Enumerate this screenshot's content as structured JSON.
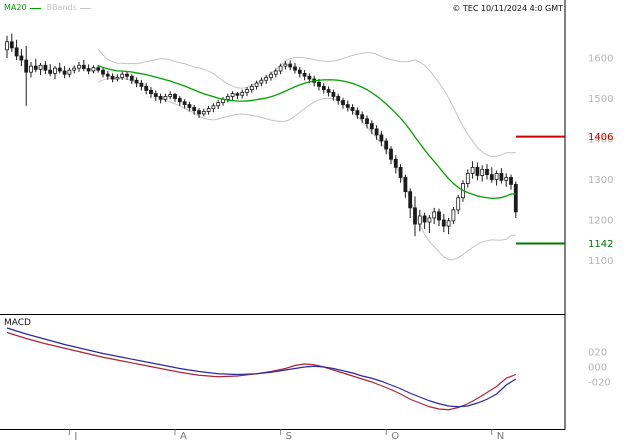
{
  "header": {
    "legend": [
      {
        "label": "MA20",
        "color": "#00a000",
        "icon": "line-swatch"
      },
      {
        "label": "BBands",
        "color": "#c4c4c4",
        "icon": "line-swatch"
      }
    ],
    "copyright": "© TEC 10/11/2024 4:0 GMT"
  },
  "colors": {
    "frame": "#000000",
    "axis_text": "#b4b4b4",
    "month_text": "#7a7a7a",
    "tick_mark": "#8a8a8a",
    "candle": "#1c1c1c",
    "candle_up_fill": "#ffffff",
    "ma20": "#00a000",
    "bbands": "#c4c4c4",
    "resistance": "#cc0000",
    "support": "#007700",
    "macd_line": "#b02535",
    "macd_signal": "#2a2aa0"
  },
  "chart_data": [
    {
      "type": "candlestick",
      "title": "",
      "ylim": [
        1060,
        1665
      ],
      "yticks": [
        1600,
        1500,
        1400,
        1300,
        1200,
        1100
      ],
      "grid": false,
      "legend_position": "top-left",
      "x_axis": {
        "tick_labels": [
          "J",
          "A",
          "S",
          "O",
          "N"
        ],
        "tick_indices": [
          13,
          35,
          57,
          79,
          101
        ]
      },
      "overlays": [
        {
          "name": "MA20",
          "kind": "sma",
          "period": 20
        },
        {
          "name": "BBands",
          "kind": "bollinger",
          "period": 20,
          "stddev": 2
        }
      ],
      "levels": [
        {
          "label": "1406",
          "value": 1406,
          "color": "#cc0000",
          "role": "resistance"
        },
        {
          "label": "1142",
          "value": 1142,
          "color": "#007700",
          "role": "support"
        }
      ],
      "candles_ohlc": [
        [
          1620,
          1655,
          1600,
          1640
        ],
        [
          1640,
          1660,
          1615,
          1625
        ],
        [
          1625,
          1645,
          1595,
          1605
        ],
        [
          1605,
          1622,
          1580,
          1595
        ],
        [
          1595,
          1630,
          1482,
          1565
        ],
        [
          1565,
          1590,
          1552,
          1580
        ],
        [
          1580,
          1598,
          1565,
          1572
        ],
        [
          1572,
          1588,
          1558,
          1582
        ],
        [
          1582,
          1592,
          1560,
          1570
        ],
        [
          1570,
          1585,
          1555,
          1562
        ],
        [
          1562,
          1580,
          1548,
          1575
        ],
        [
          1575,
          1588,
          1562,
          1568
        ],
        [
          1568,
          1580,
          1550,
          1560
        ],
        [
          1560,
          1576,
          1552,
          1570
        ],
        [
          1570,
          1582,
          1562,
          1575
        ],
        [
          1575,
          1590,
          1566,
          1582
        ],
        [
          1582,
          1595,
          1568,
          1574
        ],
        [
          1574,
          1584,
          1560,
          1568
        ],
        [
          1568,
          1582,
          1562,
          1576
        ],
        [
          1576,
          1583,
          1564,
          1570
        ],
        [
          1570,
          1576,
          1552,
          1560
        ],
        [
          1560,
          1568,
          1546,
          1555
        ],
        [
          1555,
          1562,
          1540,
          1548
        ],
        [
          1548,
          1560,
          1542,
          1552
        ],
        [
          1552,
          1566,
          1546,
          1560
        ],
        [
          1560,
          1566,
          1546,
          1555
        ],
        [
          1555,
          1560,
          1536,
          1545
        ],
        [
          1545,
          1552,
          1528,
          1538
        ],
        [
          1538,
          1546,
          1520,
          1530
        ],
        [
          1530,
          1538,
          1510,
          1520
        ],
        [
          1520,
          1528,
          1502,
          1512
        ],
        [
          1512,
          1520,
          1494,
          1505
        ],
        [
          1505,
          1512,
          1488,
          1498
        ],
        [
          1498,
          1512,
          1492,
          1505
        ],
        [
          1505,
          1518,
          1498,
          1510
        ],
        [
          1510,
          1514,
          1492,
          1500
        ],
        [
          1500,
          1506,
          1482,
          1492
        ],
        [
          1492,
          1498,
          1475,
          1485
        ],
        [
          1485,
          1492,
          1468,
          1478
        ],
        [
          1478,
          1484,
          1460,
          1470
        ],
        [
          1470,
          1476,
          1452,
          1462
        ],
        [
          1462,
          1475,
          1456,
          1468
        ],
        [
          1468,
          1482,
          1460,
          1475
        ],
        [
          1475,
          1488,
          1466,
          1482
        ],
        [
          1482,
          1496,
          1474,
          1490
        ],
        [
          1490,
          1504,
          1482,
          1498
        ],
        [
          1498,
          1512,
          1490,
          1505
        ],
        [
          1505,
          1518,
          1496,
          1512
        ],
        [
          1512,
          1516,
          1498,
          1508
        ],
        [
          1508,
          1522,
          1500,
          1515
        ],
        [
          1515,
          1528,
          1506,
          1522
        ],
        [
          1522,
          1536,
          1514,
          1530
        ],
        [
          1530,
          1544,
          1522,
          1538
        ],
        [
          1538,
          1552,
          1530,
          1545
        ],
        [
          1545,
          1558,
          1536,
          1552
        ],
        [
          1552,
          1566,
          1544,
          1560
        ],
        [
          1560,
          1574,
          1552,
          1568
        ],
        [
          1568,
          1586,
          1560,
          1580
        ],
        [
          1580,
          1592,
          1572,
          1585
        ],
        [
          1585,
          1594,
          1570,
          1578
        ],
        [
          1578,
          1588,
          1562,
          1570
        ],
        [
          1570,
          1578,
          1552,
          1562
        ],
        [
          1562,
          1570,
          1545,
          1555
        ],
        [
          1555,
          1562,
          1538,
          1548
        ],
        [
          1548,
          1556,
          1530,
          1540
        ],
        [
          1540,
          1548,
          1520,
          1530
        ],
        [
          1530,
          1538,
          1512,
          1522
        ],
        [
          1522,
          1530,
          1505,
          1515
        ],
        [
          1515,
          1522,
          1495,
          1505
        ],
        [
          1505,
          1512,
          1485,
          1495
        ],
        [
          1495,
          1502,
          1475,
          1485
        ],
        [
          1485,
          1495,
          1468,
          1478
        ],
        [
          1478,
          1486,
          1460,
          1470
        ],
        [
          1470,
          1478,
          1450,
          1460
        ],
        [
          1460,
          1468,
          1440,
          1450
        ],
        [
          1450,
          1458,
          1426,
          1438
        ],
        [
          1438,
          1446,
          1412,
          1425
        ],
        [
          1425,
          1434,
          1398,
          1410
        ],
        [
          1410,
          1420,
          1382,
          1395
        ],
        [
          1395,
          1402,
          1362,
          1375
        ],
        [
          1375,
          1382,
          1338,
          1350
        ],
        [
          1350,
          1360,
          1315,
          1330
        ],
        [
          1330,
          1338,
          1292,
          1305
        ],
        [
          1305,
          1312,
          1255,
          1270
        ],
        [
          1270,
          1278,
          1205,
          1230
        ],
        [
          1230,
          1258,
          1160,
          1190
        ],
        [
          1190,
          1225,
          1172,
          1210
        ],
        [
          1210,
          1218,
          1178,
          1195
        ],
        [
          1195,
          1212,
          1168,
          1205
        ],
        [
          1205,
          1230,
          1190,
          1220
        ],
        [
          1220,
          1228,
          1185,
          1200
        ],
        [
          1200,
          1215,
          1170,
          1185
        ],
        [
          1185,
          1205,
          1165,
          1198
        ],
        [
          1198,
          1232,
          1190,
          1225
        ],
        [
          1225,
          1262,
          1215,
          1255
        ],
        [
          1255,
          1298,
          1245,
          1290
        ],
        [
          1290,
          1325,
          1280,
          1315
        ],
        [
          1315,
          1345,
          1302,
          1330
        ],
        [
          1330,
          1342,
          1298,
          1310
        ],
        [
          1310,
          1335,
          1295,
          1325
        ],
        [
          1325,
          1338,
          1300,
          1312
        ],
        [
          1312,
          1330,
          1292,
          1300
        ],
        [
          1300,
          1322,
          1285,
          1315
        ],
        [
          1315,
          1328,
          1290,
          1298
        ],
        [
          1298,
          1315,
          1282,
          1305
        ],
        [
          1305,
          1312,
          1275,
          1288
        ],
        [
          1288,
          1295,
          1205,
          1220
        ]
      ]
    },
    {
      "type": "line",
      "title": "MACD",
      "ylim": [
        -85,
        68
      ],
      "grid": false,
      "yticks": [
        {
          "label": "020",
          "value": 20
        },
        {
          "label": "000",
          "value": 0
        },
        {
          "label": "-020",
          "value": -20
        }
      ],
      "series": [
        {
          "name": "MACD",
          "color": "#b02535",
          "points": [
            [
              0,
              46
            ],
            [
              4,
              38
            ],
            [
              8,
              31
            ],
            [
              12,
              25
            ],
            [
              16,
              19
            ],
            [
              20,
              13
            ],
            [
              24,
              8
            ],
            [
              28,
              3
            ],
            [
              32,
              -2
            ],
            [
              36,
              -7
            ],
            [
              40,
              -11
            ],
            [
              44,
              -13
            ],
            [
              48,
              -12
            ],
            [
              52,
              -9
            ],
            [
              55,
              -6
            ],
            [
              58,
              -2
            ],
            [
              60,
              2
            ],
            [
              62,
              4
            ],
            [
              64,
              3
            ],
            [
              66,
              0
            ],
            [
              68,
              -4
            ],
            [
              70,
              -8
            ],
            [
              72,
              -12
            ],
            [
              74,
              -16
            ],
            [
              76,
              -20
            ],
            [
              78,
              -25
            ],
            [
              80,
              -30
            ],
            [
              82,
              -36
            ],
            [
              84,
              -43
            ],
            [
              86,
              -48
            ],
            [
              88,
              -53
            ],
            [
              90,
              -56
            ],
            [
              92,
              -57
            ],
            [
              94,
              -54
            ],
            [
              96,
              -49
            ],
            [
              98,
              -42
            ],
            [
              100,
              -34
            ],
            [
              102,
              -26
            ],
            [
              104,
              -15
            ],
            [
              106,
              -10
            ]
          ]
        },
        {
          "name": "Signal",
          "color": "#2a2aa0",
          "points": [
            [
              0,
              52
            ],
            [
              4,
              44
            ],
            [
              8,
              37
            ],
            [
              12,
              30
            ],
            [
              16,
              24
            ],
            [
              20,
              18
            ],
            [
              24,
              13
            ],
            [
              28,
              8
            ],
            [
              32,
              3
            ],
            [
              36,
              -2
            ],
            [
              40,
              -6
            ],
            [
              44,
              -9
            ],
            [
              48,
              -10
            ],
            [
              52,
              -9
            ],
            [
              55,
              -7
            ],
            [
              58,
              -4
            ],
            [
              60,
              -2
            ],
            [
              62,
              0
            ],
            [
              64,
              1
            ],
            [
              66,
              0
            ],
            [
              68,
              -2
            ],
            [
              70,
              -5
            ],
            [
              72,
              -8
            ],
            [
              74,
              -12
            ],
            [
              76,
              -15
            ],
            [
              78,
              -19
            ],
            [
              80,
              -24
            ],
            [
              82,
              -29
            ],
            [
              84,
              -35
            ],
            [
              86,
              -40
            ],
            [
              88,
              -45
            ],
            [
              90,
              -49
            ],
            [
              92,
              -52
            ],
            [
              94,
              -53
            ],
            [
              96,
              -52
            ],
            [
              98,
              -48
            ],
            [
              100,
              -43
            ],
            [
              102,
              -36
            ],
            [
              104,
              -24
            ],
            [
              106,
              -16
            ]
          ]
        }
      ]
    }
  ]
}
